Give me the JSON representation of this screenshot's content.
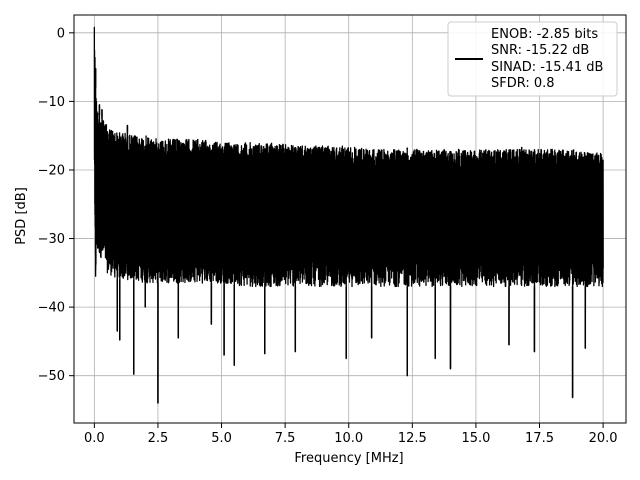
{
  "chart_data": {
    "type": "line",
    "title": "",
    "xlabel": "Frequency [MHz]",
    "ylabel": "PSD [dB]",
    "xlim": [
      -0.8,
      20.9
    ],
    "ylim": [
      -56.9,
      2.6
    ],
    "xticks": [
      0.0,
      2.5,
      5.0,
      7.5,
      10.0,
      12.5,
      15.0,
      17.5,
      20.0
    ],
    "xtick_labels": [
      "0.0",
      "2.5",
      "5.0",
      "7.5",
      "10.0",
      "12.5",
      "15.0",
      "17.5",
      "20.0"
    ],
    "yticks": [
      0,
      -10,
      -20,
      -30,
      -40,
      -50
    ],
    "ytick_labels": [
      "0",
      "−10",
      "−20",
      "−30",
      "−40",
      "−50"
    ],
    "grid": true,
    "legend_position": "top-right",
    "legend_lines": [
      "ENOB: -2.85 bits",
      "SNR: -15.22 dB",
      "SINAD: -15.41 dB",
      "SFDR: 0.8"
    ],
    "series": [
      {
        "color": "#000000",
        "x": [
          0.0,
          0.02,
          0.05,
          0.1,
          0.15,
          0.2,
          0.3,
          0.4,
          0.5,
          0.7,
          0.9,
          1.2,
          1.5,
          2.0,
          2.5,
          3.0,
          4.0,
          5.0,
          6.0,
          7.0,
          8.0,
          9.0,
          10.0,
          11.0,
          12.0,
          12.3,
          13.0,
          14.0,
          15.0,
          16.0,
          17.0,
          18.0,
          18.8,
          19.5,
          20.0
        ],
        "upper": [
          0.8,
          -2.0,
          -8.0,
          -10.5,
          -11.5,
          -12.0,
          -12.5,
          -13.0,
          -13.5,
          -14.0,
          -14.5,
          -14.5,
          -15.0,
          -15.0,
          -15.5,
          -15.5,
          -15.5,
          -16.0,
          -16.0,
          -16.0,
          -16.5,
          -16.5,
          -16.5,
          -17.0,
          -17.0,
          -17.0,
          -17.0,
          -17.0,
          -17.0,
          -17.0,
          -17.0,
          -17.0,
          -17.0,
          -17.5,
          -17.5
        ],
        "lower": [
          -20.0,
          -30.0,
          -35.5,
          -32.0,
          -32.5,
          -32.5,
          -33.0,
          -33.5,
          -35.0,
          -35.5,
          -36.0,
          -36.0,
          -36.0,
          -36.5,
          -36.5,
          -36.5,
          -36.5,
          -36.5,
          -37.0,
          -37.0,
          -37.0,
          -37.0,
          -37.0,
          -37.0,
          -37.0,
          -37.0,
          -37.0,
          -37.0,
          -37.0,
          -37.0,
          -37.0,
          -37.0,
          -37.0,
          -37.0,
          -37.0
        ],
        "dips": [
          {
            "x": 0.05,
            "y": -35.5
          },
          {
            "x": 0.9,
            "y": -43.5
          },
          {
            "x": 1.0,
            "y": -44.8
          },
          {
            "x": 1.55,
            "y": -49.8
          },
          {
            "x": 2.0,
            "y": -40.0
          },
          {
            "x": 2.5,
            "y": -54.0
          },
          {
            "x": 3.3,
            "y": -44.5
          },
          {
            "x": 4.6,
            "y": -42.5
          },
          {
            "x": 5.1,
            "y": -47.0
          },
          {
            "x": 5.5,
            "y": -48.5
          },
          {
            "x": 6.7,
            "y": -46.8
          },
          {
            "x": 7.9,
            "y": -46.5
          },
          {
            "x": 9.9,
            "y": -47.5
          },
          {
            "x": 10.9,
            "y": -44.5
          },
          {
            "x": 12.3,
            "y": -50.0
          },
          {
            "x": 13.4,
            "y": -47.5
          },
          {
            "x": 14.0,
            "y": -49.0
          },
          {
            "x": 16.3,
            "y": -45.5
          },
          {
            "x": 17.3,
            "y": -46.5
          },
          {
            "x": 18.8,
            "y": -53.2
          },
          {
            "x": 19.3,
            "y": -46.0
          }
        ],
        "peaks": [
          {
            "x": 0.0,
            "y": 0.8
          },
          {
            "x": 0.05,
            "y": -5.2
          },
          {
            "x": 0.2,
            "y": -10.5
          },
          {
            "x": 0.3,
            "y": -11.2
          },
          {
            "x": 1.3,
            "y": -13.5
          },
          {
            "x": 12.3,
            "y": -16.8
          },
          {
            "x": 16.8,
            "y": -16.7
          },
          {
            "x": 18.0,
            "y": -17.0
          }
        ]
      }
    ]
  }
}
